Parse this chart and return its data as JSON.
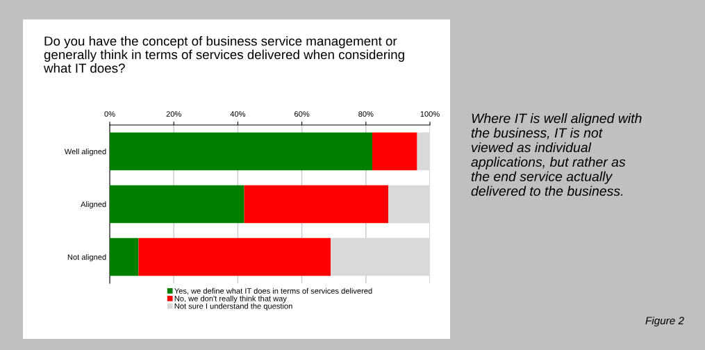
{
  "chart_data": {
    "type": "bar",
    "orientation": "horizontal",
    "stacked": true,
    "title": "Do you have the concept of business service management or generally think in terms of services delivered when considering what IT does?",
    "categories": [
      "Well aligned",
      "Aligned",
      "Not aligned"
    ],
    "series": [
      {
        "name": "Yes, we define what IT does in terms of services delivered",
        "color": "#008000",
        "values": [
          82,
          42,
          9
        ]
      },
      {
        "name": "No, we don't really think that way",
        "color": "#ff0000",
        "values": [
          14,
          45,
          60
        ]
      },
      {
        "name": "Not sure I understand the question",
        "color": "#d9d9d9",
        "values": [
          4,
          13,
          31
        ]
      }
    ],
    "xlim": [
      0,
      100
    ],
    "xticks": [
      {
        "value": 0,
        "label": "0%"
      },
      {
        "value": 20,
        "label": "20%"
      },
      {
        "value": 40,
        "label": "40%"
      },
      {
        "value": 60,
        "label": "60%"
      },
      {
        "value": 80,
        "label": "80%"
      },
      {
        "value": 100,
        "label": "100%"
      }
    ],
    "grid": "x",
    "legend": "bottom",
    "annotations": [
      "Where IT is well aligned with the business, IT is not viewed as individual applications, but rather as the end service actually delivered to the business.",
      "Figure 2"
    ]
  }
}
